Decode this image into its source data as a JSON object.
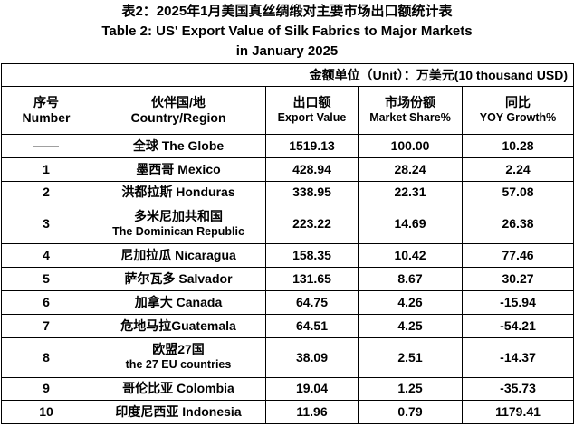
{
  "header": {
    "title_lines": [
      "表2：2025年1月美国真丝绸缎对主要市场出口额统计表",
      "Table 2: US' Export Value of Silk Fabrics to Major Markets",
      "in January 2025"
    ],
    "unit": "金额单位（Unit）：万美元(10 thousand USD)"
  },
  "table": {
    "columns": [
      [
        "序号",
        "Number"
      ],
      [
        "伙伴国/地",
        "Country/Region"
      ],
      [
        "出口额",
        "Export Value"
      ],
      [
        "市场份额",
        "Market Share%"
      ],
      [
        "同比",
        "YOY Growth%"
      ]
    ],
    "rows": [
      [
        "——",
        "全球 The Globe",
        "1519.13",
        "100.00",
        "10.28"
      ],
      [
        "1",
        "墨西哥 Mexico",
        "428.94",
        "28.24",
        "2.24"
      ],
      [
        "2",
        "洪都拉斯 Honduras",
        "338.95",
        "22.31",
        "57.08"
      ],
      [
        "3",
        [
          "多米尼加共和国",
          "The Dominican Republic"
        ],
        "223.22",
        "14.69",
        "26.38"
      ],
      [
        "4",
        "尼加拉瓜 Nicaragua",
        "158.35",
        "10.42",
        "77.46"
      ],
      [
        "5",
        "萨尔瓦多 Salvador",
        "131.65",
        "8.67",
        "30.27"
      ],
      [
        "6",
        "加拿大 Canada",
        "64.75",
        "4.26",
        "-15.94"
      ],
      [
        "7",
        "危地马拉Guatemala",
        "64.51",
        "4.25",
        "-54.21"
      ],
      [
        "8",
        [
          "欧盟27国",
          "the 27 EU countries"
        ],
        "38.09",
        "2.51",
        "-14.37"
      ],
      [
        "9",
        "哥伦比亚 Colombia",
        "19.04",
        "1.25",
        "-35.73"
      ],
      [
        "10",
        "印度尼西亚 Indonesia",
        "11.96",
        "0.79",
        "1179.41"
      ]
    ]
  }
}
